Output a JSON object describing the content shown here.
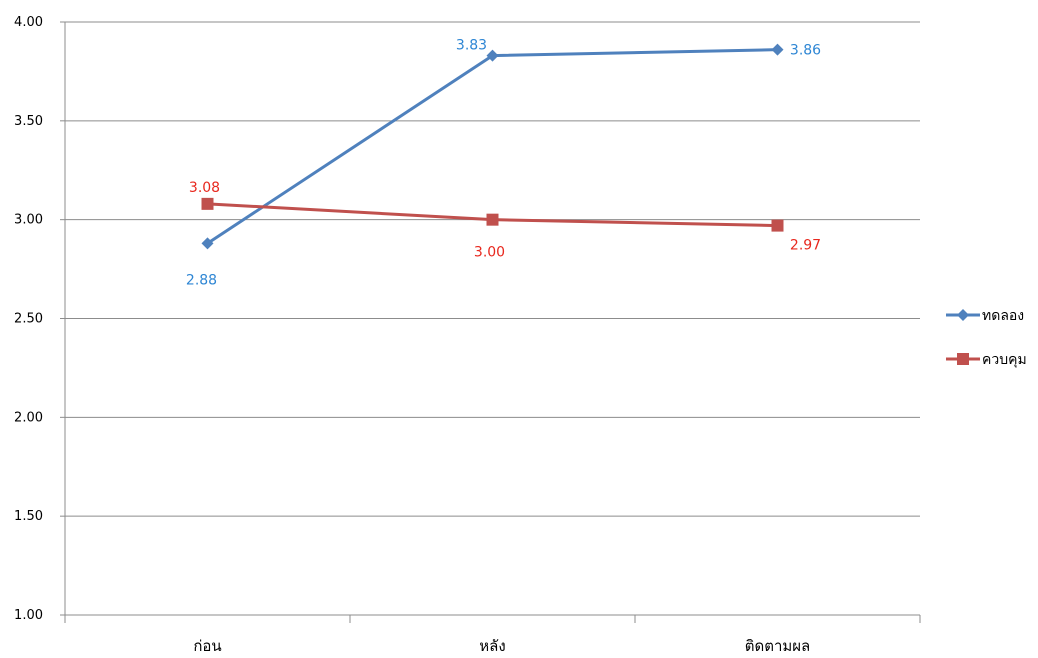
{
  "chart_data": {
    "type": "line",
    "title": "",
    "xlabel": "",
    "ylabel": "",
    "categories": [
      "ก่อน",
      "หลัง",
      "ติดตามผล"
    ],
    "y_ticks": [
      "1.00",
      "1.50",
      "2.00",
      "2.50",
      "3.00",
      "3.50",
      "4.00"
    ],
    "ylim": [
      1.0,
      4.0
    ],
    "grid": true,
    "legend_position": "right",
    "series": [
      {
        "name": "ทดลอง",
        "values": [
          2.88,
          3.83,
          3.86
        ],
        "labels": [
          "2.88",
          "3.83",
          "3.86"
        ],
        "color": "#4F81BD",
        "label_color": "#2E86D4",
        "marker": "diamond"
      },
      {
        "name": "ควบคุม",
        "values": [
          3.08,
          3.0,
          2.97
        ],
        "labels": [
          "3.08",
          "3.00",
          "2.97"
        ],
        "color": "#C0504D",
        "label_color": "#E8281E",
        "marker": "square"
      }
    ]
  }
}
